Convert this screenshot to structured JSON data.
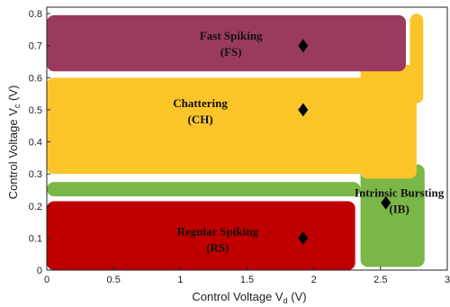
{
  "chart_data": {
    "type": "region-map",
    "xlabel": "Control Voltage V",
    "xlabel_sub": "d",
    "xlabel_unit": " (V)",
    "ylabel": "Control Voltage V",
    "ylabel_sub": "c",
    "ylabel_unit": " (V)",
    "xlim": [
      0,
      3
    ],
    "ylim": [
      0,
      0.82
    ],
    "x_ticks": [
      {
        "value": 0,
        "label": "0"
      },
      {
        "value": 0.5,
        "label": "0.5"
      },
      {
        "value": 1,
        "label": "1"
      },
      {
        "value": 1.5,
        "label": "1.5"
      },
      {
        "value": 2,
        "label": "2"
      },
      {
        "value": 2.5,
        "label": "2.5"
      },
      {
        "value": 3,
        "label": "3"
      }
    ],
    "y_ticks": [
      {
        "value": 0,
        "label": "0"
      },
      {
        "value": 0.1,
        "label": "0.1"
      },
      {
        "value": 0.2,
        "label": "0.2"
      },
      {
        "value": 0.3,
        "label": "0.3"
      },
      {
        "value": 0.4,
        "label": "0.4"
      },
      {
        "value": 0.5,
        "label": "0.5"
      },
      {
        "value": 0.6,
        "label": "0.6"
      },
      {
        "value": 0.7,
        "label": "0.7"
      },
      {
        "value": 0.8,
        "label": "0.8"
      }
    ],
    "regions": [
      {
        "id": "intrinsic-bursting",
        "label_line1": "Intrinsic Bursting",
        "label_line2": "(IB)",
        "color": "#7ab648",
        "areas": [
          {
            "x0": 0,
            "x1": 2.35,
            "y0": 0.23,
            "y1": 0.275
          },
          {
            "x0": 2.35,
            "x1": 2.83,
            "y0": 0.01,
            "y1": 0.33
          }
        ],
        "label_at": [
          2.64,
          0.22
        ],
        "marker": [
          2.54,
          0.21
        ]
      },
      {
        "id": "regular-spiking",
        "label_line1": "Regular Spiking",
        "label_line2": "(RS)",
        "color": "#c00000",
        "areas": [
          {
            "x0": 0,
            "x1": 2.31,
            "y0": 0.0,
            "y1": 0.215
          }
        ],
        "label_at": [
          1.28,
          0.1
        ],
        "marker": [
          1.92,
          0.1
        ]
      },
      {
        "id": "chattering",
        "label_line1": "Chattering",
        "label_line2": "(CH)",
        "color": "#fbc52a",
        "areas": [
          {
            "x0": 0,
            "x1": 2.75,
            "y0": 0.3,
            "y1": 0.6
          },
          {
            "x0": 2.35,
            "x1": 2.77,
            "y0": 0.285,
            "y1": 0.64
          },
          {
            "x0": 2.72,
            "x1": 2.82,
            "y0": 0.52,
            "y1": 0.8
          }
        ],
        "label_at": [
          1.15,
          0.5
        ],
        "marker": [
          1.92,
          0.5
        ]
      },
      {
        "id": "fast-spiking",
        "label_line1": "Fast Spiking",
        "label_line2": "(FS)",
        "color": "#9b3a60",
        "areas": [
          {
            "x0": 0,
            "x1": 2.69,
            "y0": 0.62,
            "y1": 0.795
          }
        ],
        "label_at": [
          1.38,
          0.71
        ],
        "marker": [
          1.92,
          0.7
        ]
      }
    ],
    "grid": false,
    "legend": "none"
  }
}
